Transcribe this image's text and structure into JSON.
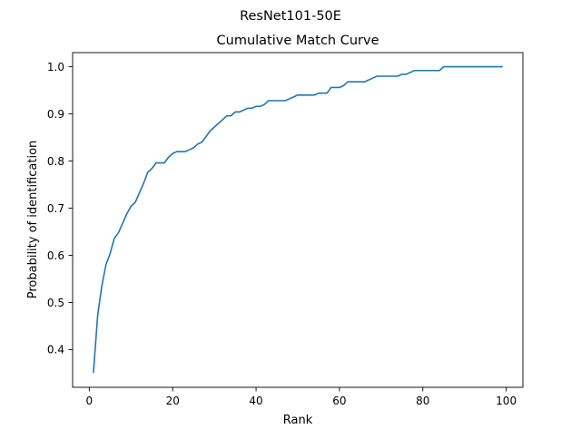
{
  "chart_data": {
    "type": "line",
    "suptitle": "ResNet101-50E",
    "title": "Cumulative Match Curve",
    "xlabel": "Rank",
    "ylabel": "Probability of identification",
    "xlim": [
      -4,
      104
    ],
    "ylim": [
      0.32,
      1.03
    ],
    "xticks": [
      0,
      20,
      40,
      60,
      80,
      100
    ],
    "xtick_labels": [
      "0",
      "20",
      "40",
      "60",
      "80",
      "100"
    ],
    "yticks": [
      0.4,
      0.5,
      0.6,
      0.7,
      0.8,
      0.9,
      1.0
    ],
    "ytick_labels": [
      "0.4",
      "0.5",
      "0.6",
      "0.7",
      "0.8",
      "0.9",
      "1.0"
    ],
    "grid": false,
    "series": [
      {
        "color": "#1f77b4",
        "x": [
          1,
          2,
          3,
          4,
          5,
          6,
          7,
          8,
          9,
          10,
          11,
          12,
          13,
          14,
          15,
          16,
          17,
          18,
          19,
          20,
          21,
          22,
          23,
          24,
          25,
          26,
          27,
          28,
          29,
          30,
          31,
          32,
          33,
          34,
          35,
          36,
          37,
          38,
          39,
          40,
          41,
          42,
          43,
          44,
          45,
          46,
          47,
          48,
          49,
          50,
          51,
          52,
          53,
          54,
          55,
          56,
          57,
          58,
          59,
          60,
          61,
          62,
          63,
          64,
          65,
          66,
          67,
          68,
          69,
          70,
          71,
          72,
          73,
          74,
          75,
          76,
          77,
          78,
          79,
          80,
          81,
          82,
          83,
          84,
          85,
          86,
          87,
          88,
          89,
          90,
          91,
          92,
          93,
          94,
          95,
          96,
          97,
          98,
          99
        ],
        "values": [
          0.352,
          0.472,
          0.535,
          0.58,
          0.604,
          0.636,
          0.648,
          0.668,
          0.688,
          0.704,
          0.712,
          0.732,
          0.752,
          0.776,
          0.784,
          0.796,
          0.796,
          0.796,
          0.808,
          0.816,
          0.82,
          0.82,
          0.82,
          0.824,
          0.828,
          0.836,
          0.84,
          0.852,
          0.864,
          0.872,
          0.88,
          0.888,
          0.896,
          0.896,
          0.904,
          0.904,
          0.908,
          0.912,
          0.912,
          0.916,
          0.916,
          0.92,
          0.928,
          0.928,
          0.928,
          0.928,
          0.928,
          0.932,
          0.936,
          0.94,
          0.94,
          0.94,
          0.94,
          0.94,
          0.944,
          0.944,
          0.944,
          0.956,
          0.956,
          0.956,
          0.96,
          0.968,
          0.968,
          0.968,
          0.968,
          0.968,
          0.972,
          0.976,
          0.98,
          0.98,
          0.98,
          0.98,
          0.98,
          0.98,
          0.984,
          0.984,
          0.988,
          0.992,
          0.992,
          0.992,
          0.992,
          0.992,
          0.992,
          0.992,
          1.0,
          1.0,
          1.0,
          1.0,
          1.0,
          1.0,
          1.0,
          1.0,
          1.0,
          1.0,
          1.0,
          1.0,
          1.0,
          1.0,
          1.0
        ]
      }
    ]
  }
}
